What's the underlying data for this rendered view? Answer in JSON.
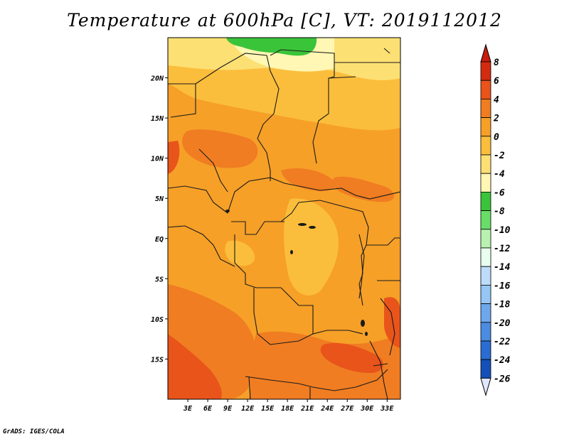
{
  "title": "Temperature at 600hPa [C], VT: 2019112012",
  "footer": "GrADS: IGES/COLA",
  "map": {
    "lon_range": [
      0,
      35
    ],
    "lat_range": [
      -20,
      25
    ],
    "lat_ticks": [
      {
        "value": 20,
        "label": "20N"
      },
      {
        "value": 15,
        "label": "15N"
      },
      {
        "value": 10,
        "label": "10N"
      },
      {
        "value": 5,
        "label": "5N"
      },
      {
        "value": 0,
        "label": "EQ"
      },
      {
        "value": -5,
        "label": "5S"
      },
      {
        "value": -10,
        "label": "10S"
      },
      {
        "value": -15,
        "label": "15S"
      }
    ],
    "lon_ticks": [
      {
        "value": 3,
        "label": "3E"
      },
      {
        "value": 6,
        "label": "6E"
      },
      {
        "value": 9,
        "label": "9E"
      },
      {
        "value": 12,
        "label": "12E"
      },
      {
        "value": 15,
        "label": "15E"
      },
      {
        "value": 18,
        "label": "18E"
      },
      {
        "value": 21,
        "label": "21E"
      },
      {
        "value": 24,
        "label": "24E"
      },
      {
        "value": 27,
        "label": "27E"
      },
      {
        "value": 30,
        "label": "30E"
      },
      {
        "value": 33,
        "label": "33E"
      }
    ]
  },
  "colorbar": {
    "levels": [
      "8",
      "6",
      "4",
      "2",
      "0",
      "-2",
      "-4",
      "-6",
      "-8",
      "-10",
      "-12",
      "-14",
      "-16",
      "-18",
      "-20",
      "-22",
      "-24",
      "-26"
    ],
    "colors": [
      "#d42a10",
      "#e8541a",
      "#f07d22",
      "#f6a028",
      "#fbbe3c",
      "#fde074",
      "#fff7b3",
      "#3ac43a",
      "#68dd68",
      "#b9f2b0",
      "#e8fff0",
      "#bcdcfa",
      "#96c6f4",
      "#6ea8ec",
      "#4b8be0",
      "#2a6cd2",
      "#1450b8",
      "#0a2a8a",
      "#00105a"
    ],
    "top_arrow_color": "#c81c0c",
    "bottom_arrow_color": "#e0e6ff"
  }
}
